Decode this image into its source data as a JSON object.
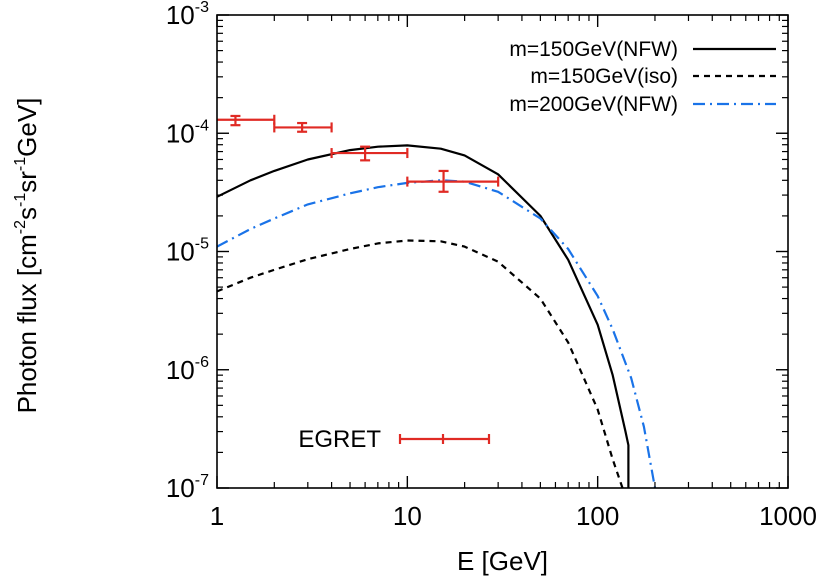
{
  "chart_data": {
    "type": "line",
    "xlabel": "E [GeV]",
    "ylabel": {
      "prefix": "Photon flux [cm",
      "exp1": "-2",
      "mid1": "s",
      "exp2": "-1",
      "mid2": "sr",
      "exp3": "-1",
      "suffix": "GeV]"
    },
    "xscale": "log",
    "yscale": "log",
    "xlim": [
      1,
      1000
    ],
    "ylim": [
      1e-07,
      0.001
    ],
    "x_ticks": [
      {
        "value": 1,
        "label": "1"
      },
      {
        "value": 10,
        "label": "10"
      },
      {
        "value": 100,
        "label": "100"
      },
      {
        "value": 1000,
        "label": "1000"
      }
    ],
    "y_ticks": [
      {
        "value": 1e-07,
        "base": "10",
        "exp": "-7"
      },
      {
        "value": 1e-06,
        "base": "10",
        "exp": "-6"
      },
      {
        "value": 1e-05,
        "base": "10",
        "exp": "-5"
      },
      {
        "value": 0.0001,
        "base": "10",
        "exp": "-4"
      },
      {
        "value": 0.001,
        "base": "10",
        "exp": "-3"
      }
    ],
    "grid": false,
    "legend_position": "top-right",
    "series": [
      {
        "name": "m=150GeV(NFW)",
        "color": "#000000",
        "style": "solid",
        "x": [
          1,
          1.5,
          2,
          3,
          5,
          7,
          10,
          15,
          20,
          30,
          50,
          70,
          100,
          120,
          140,
          145,
          145
        ],
        "y": [
          2.9e-05,
          4e-05,
          4.8e-05,
          6e-05,
          7.2e-05,
          7.7e-05,
          7.9e-05,
          7.4e-05,
          6.5e-05,
          4.5e-05,
          2e-05,
          8.5e-06,
          2.4e-06,
          9e-07,
          3e-07,
          2.3e-07,
          1e-07
        ]
      },
      {
        "name": "m=150GeV(iso)",
        "color": "#000000",
        "style": "dashed",
        "x": [
          1,
          1.5,
          2,
          3,
          5,
          7,
          10,
          15,
          20,
          30,
          50,
          70,
          100,
          120,
          135
        ],
        "y": [
          4.6e-06,
          6e-06,
          7e-06,
          8.6e-06,
          1.05e-05,
          1.17e-05,
          1.24e-05,
          1.22e-05,
          1.1e-05,
          8.2e-06,
          4e-06,
          1.7e-06,
          4.6e-07,
          1.75e-07,
          1e-07
        ]
      },
      {
        "name": "m=200GeV(NFW)",
        "color": "#1a73e8",
        "style": "dashdot",
        "x": [
          1,
          1.5,
          2,
          3,
          5,
          7,
          10,
          15,
          20,
          30,
          50,
          70,
          100,
          120,
          150,
          175,
          200
        ],
        "y": [
          1.1e-05,
          1.55e-05,
          1.9e-05,
          2.5e-05,
          3.1e-05,
          3.5e-05,
          3.8e-05,
          4e-05,
          3.9e-05,
          3.2e-05,
          1.9e-05,
          1.05e-05,
          4.2e-06,
          2.2e-06,
          8.5e-07,
          3.3e-07,
          1e-07
        ]
      }
    ],
    "egret": {
      "label": "EGRET",
      "color": "#e02a24",
      "points": [
        {
          "x": 1.25,
          "y": 0.00013,
          "xmin": 0.95,
          "xmax": 2.0,
          "ymin": 0.000117,
          "ymax": 0.00014
        },
        {
          "x": 2.8,
          "y": 0.000112,
          "xmin": 2.0,
          "xmax": 4.0,
          "ymin": 0.000103,
          "ymax": 0.000122
        },
        {
          "x": 6.0,
          "y": 6.8e-05,
          "xmin": 4.0,
          "xmax": 10.0,
          "ymin": 5.9e-05,
          "ymax": 7.7e-05
        },
        {
          "x": 15.5,
          "y": 3.9e-05,
          "xmin": 10.0,
          "xmax": 30.0,
          "ymin": 3.2e-05,
          "ymax": 4.8e-05
        }
      ]
    }
  }
}
